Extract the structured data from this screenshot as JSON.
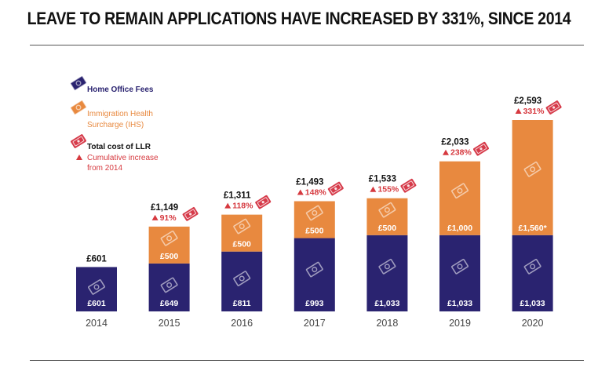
{
  "title": "LEAVE TO REMAIN APPLICATIONS HAVE INCREASED BY 331%, SINCE 2014",
  "colors": {
    "fees": "#2a2370",
    "ihs": "#e8893f",
    "total": "#d63b4a",
    "increase": "#d6393f",
    "axis_text": "#444444"
  },
  "legend": {
    "fees": "Home Office Fees",
    "ihs_line1": "Immigration Health",
    "ihs_line2": "Surcharge (IHS)",
    "total": "Total cost of LLR",
    "increase_line1": "Cumulative increase",
    "increase_line2": "from 2014"
  },
  "chart_data": {
    "type": "bar",
    "stacked": true,
    "categories": [
      "2014",
      "2015",
      "2016",
      "2017",
      "2018",
      "2019",
      "2020"
    ],
    "series": [
      {
        "name": "Home Office Fees",
        "values": [
          601,
          649,
          811,
          993,
          1033,
          1033,
          1033
        ],
        "labels": [
          "£601",
          "£649",
          "£811",
          "£993",
          "£1,033",
          "£1,033",
          "£1,033"
        ]
      },
      {
        "name": "Immigration Health Surcharge (IHS)",
        "values": [
          0,
          500,
          500,
          500,
          500,
          1000,
          1560
        ],
        "labels": [
          "",
          "£500",
          "£500",
          "£500",
          "£500",
          "£1,000",
          "£1,560*"
        ]
      }
    ],
    "totals": [
      "£601",
      "£1,149",
      "£1,311",
      "£1,493",
      "£1,533",
      "£2,033",
      "£2,593"
    ],
    "increase": [
      "",
      "91%",
      "118%",
      "148%",
      "155%",
      "238%",
      "331%"
    ],
    "ylim": [
      0,
      2593
    ]
  }
}
